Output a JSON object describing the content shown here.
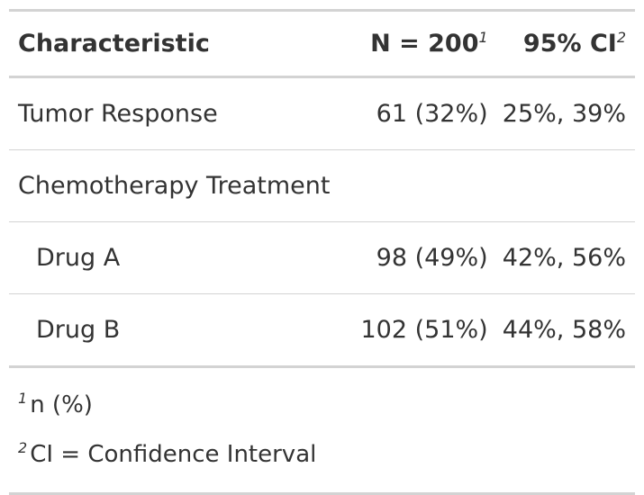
{
  "table": {
    "header": {
      "characteristic": "Characteristic",
      "n": "N = 200",
      "n_footnote": "1",
      "ci": "95% CI",
      "ci_footnote": "2"
    },
    "rows": [
      {
        "label": "Tumor Response",
        "n": "61 (32%)",
        "ci": "25%, 39%"
      },
      {
        "label": "Chemotherapy Treatment",
        "n": "",
        "ci": ""
      },
      {
        "label": "Drug A",
        "n": "98 (49%)",
        "ci": "42%, 56%"
      },
      {
        "label": "Drug B",
        "n": "102 (51%)",
        "ci": "44%, 58%"
      }
    ],
    "footnotes": [
      {
        "mark": "1",
        "text": "n (%)"
      },
      {
        "mark": "2",
        "text": "CI = Confidence Interval"
      }
    ]
  }
}
